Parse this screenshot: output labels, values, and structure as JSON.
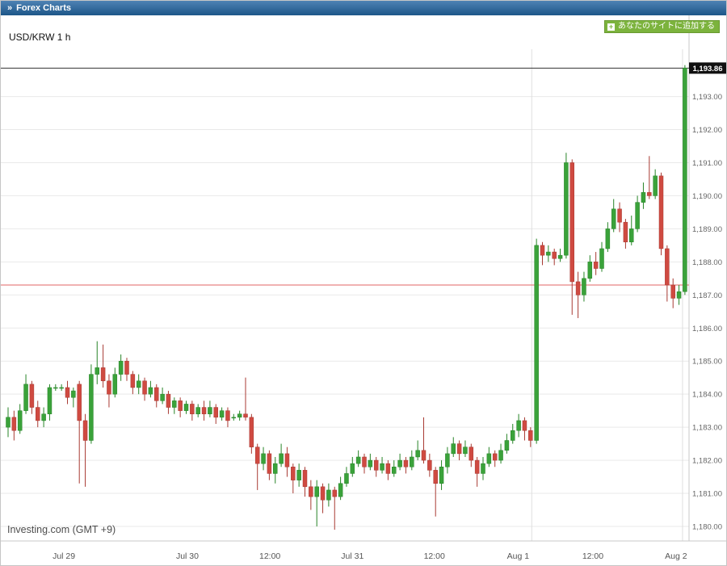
{
  "header": {
    "title": "Forex Charts",
    "chevron": "»"
  },
  "add_button": {
    "plus": "+",
    "label": "あなたのサイトに追加する"
  },
  "chart": {
    "symbol_label": "USD/KRW 1 h",
    "watermark": "Investing.com (GMT +9)"
  },
  "chart_data": {
    "type": "candlestick",
    "title": "USD/KRW 1 h",
    "pair": "USD/KRW",
    "timeframe": "1 h",
    "ylim": [
      1179.56,
      1194.43
    ],
    "price_ticks": [
      1180,
      1181,
      1182,
      1183,
      1184,
      1185,
      1186,
      1187,
      1188,
      1189,
      1190,
      1191,
      1192,
      1193
    ],
    "x_ticks": [
      {
        "label": "Jul 29",
        "i": 9.4
      },
      {
        "label": "Jul 30",
        "i": 30.2
      },
      {
        "label": "12:00",
        "i": 44.1
      },
      {
        "label": "Jul 31",
        "i": 58.0
      },
      {
        "label": "12:00",
        "i": 71.8
      },
      {
        "label": "Aug 1",
        "i": 85.9
      },
      {
        "label": "12:00",
        "i": 98.5
      },
      {
        "label": "Aug 2",
        "i": 112.5
      }
    ],
    "day_separators": [
      88.2,
      113.6
    ],
    "current_price": 1193.86,
    "current_price_label": "1,193.86",
    "reference_price": 1187.3,
    "colors": {
      "up": "#3aa23a",
      "up_stroke": "#278427",
      "down": "#cf4a41",
      "down_stroke": "#a83a33",
      "reference_line": "#e06666",
      "current_line": "#333333",
      "grid": "#e9e9e9",
      "axis": "#c8c8c8"
    },
    "candle_format": [
      "open",
      "high",
      "low",
      "close"
    ],
    "candles": [
      [
        1183.0,
        1183.6,
        1182.7,
        1183.3
      ],
      [
        1183.3,
        1183.5,
        1182.6,
        1182.9
      ],
      [
        1182.9,
        1183.7,
        1182.8,
        1183.5
      ],
      [
        1183.5,
        1184.6,
        1183.4,
        1184.3
      ],
      [
        1184.3,
        1184.4,
        1183.4,
        1183.6
      ],
      [
        1183.6,
        1183.8,
        1183.0,
        1183.2
      ],
      [
        1183.2,
        1183.6,
        1183.0,
        1183.4
      ],
      [
        1183.4,
        1184.3,
        1183.2,
        1184.2
      ],
      [
        1184.2,
        1184.3,
        1184.1,
        1184.2
      ],
      [
        1184.2,
        1184.3,
        1184.1,
        1184.2
      ],
      [
        1184.2,
        1184.4,
        1183.7,
        1183.9
      ],
      [
        1183.9,
        1184.2,
        1183.6,
        1184.1
      ],
      [
        1184.3,
        1184.4,
        1181.3,
        1183.2
      ],
      [
        1183.2,
        1183.4,
        1181.2,
        1182.6
      ],
      [
        1182.6,
        1184.9,
        1182.5,
        1184.6
      ],
      [
        1184.6,
        1185.6,
        1184.3,
        1184.8
      ],
      [
        1184.8,
        1185.5,
        1184.2,
        1184.4
      ],
      [
        1184.4,
        1184.6,
        1183.6,
        1184.0
      ],
      [
        1184.0,
        1184.8,
        1183.9,
        1184.6
      ],
      [
        1184.6,
        1185.2,
        1184.4,
        1185.0
      ],
      [
        1185.0,
        1185.1,
        1184.4,
        1184.6
      ],
      [
        1184.6,
        1184.7,
        1184.0,
        1184.2
      ],
      [
        1184.2,
        1184.6,
        1184.0,
        1184.4
      ],
      [
        1184.4,
        1184.5,
        1183.8,
        1184.0
      ],
      [
        1184.0,
        1184.4,
        1183.9,
        1184.2
      ],
      [
        1184.2,
        1184.3,
        1183.6,
        1183.8
      ],
      [
        1183.8,
        1184.2,
        1183.7,
        1184.0
      ],
      [
        1184.0,
        1184.1,
        1183.4,
        1183.6
      ],
      [
        1183.6,
        1183.9,
        1183.4,
        1183.8
      ],
      [
        1183.8,
        1183.9,
        1183.3,
        1183.5
      ],
      [
        1183.5,
        1183.8,
        1183.4,
        1183.7
      ],
      [
        1183.7,
        1183.8,
        1183.2,
        1183.4
      ],
      [
        1183.4,
        1183.7,
        1183.3,
        1183.6
      ],
      [
        1183.6,
        1183.8,
        1183.2,
        1183.4
      ],
      [
        1183.4,
        1183.8,
        1183.3,
        1183.6
      ],
      [
        1183.6,
        1183.7,
        1183.1,
        1183.3
      ],
      [
        1183.3,
        1183.6,
        1183.2,
        1183.5
      ],
      [
        1183.5,
        1183.6,
        1183.0,
        1183.2
      ],
      [
        1183.3,
        1183.4,
        1183.2,
        1183.3
      ],
      [
        1183.3,
        1183.5,
        1183.2,
        1183.4
      ],
      [
        1183.4,
        1184.5,
        1183.2,
        1183.3
      ],
      [
        1183.3,
        1183.4,
        1182.2,
        1182.4
      ],
      [
        1182.4,
        1182.5,
        1181.1,
        1181.9
      ],
      [
        1181.9,
        1182.4,
        1181.7,
        1182.2
      ],
      [
        1182.2,
        1182.3,
        1181.4,
        1181.6
      ],
      [
        1181.6,
        1182.1,
        1181.3,
        1181.9
      ],
      [
        1181.9,
        1182.5,
        1181.8,
        1182.2
      ],
      [
        1182.2,
        1182.4,
        1181.5,
        1181.8
      ],
      [
        1181.8,
        1181.9,
        1181.0,
        1181.4
      ],
      [
        1181.4,
        1181.9,
        1181.2,
        1181.7
      ],
      [
        1181.7,
        1181.8,
        1180.9,
        1181.2
      ],
      [
        1181.2,
        1181.4,
        1180.5,
        1180.9
      ],
      [
        1180.9,
        1181.4,
        1180.0,
        1181.2
      ],
      [
        1181.2,
        1181.3,
        1180.4,
        1180.8
      ],
      [
        1180.8,
        1181.3,
        1180.6,
        1181.1
      ],
      [
        1181.1,
        1181.2,
        1179.9,
        1180.9
      ],
      [
        1180.9,
        1181.5,
        1180.8,
        1181.3
      ],
      [
        1181.3,
        1181.8,
        1181.2,
        1181.6
      ],
      [
        1181.6,
        1182.1,
        1181.5,
        1181.9
      ],
      [
        1181.9,
        1182.3,
        1181.8,
        1182.1
      ],
      [
        1182.1,
        1182.2,
        1181.6,
        1181.8
      ],
      [
        1181.8,
        1182.2,
        1181.7,
        1182.0
      ],
      [
        1182.0,
        1182.1,
        1181.5,
        1181.7
      ],
      [
        1181.7,
        1182.1,
        1181.6,
        1181.9
      ],
      [
        1181.9,
        1182.0,
        1181.4,
        1181.6
      ],
      [
        1181.6,
        1182.0,
        1181.5,
        1181.8
      ],
      [
        1181.8,
        1182.2,
        1181.7,
        1182.0
      ],
      [
        1182.0,
        1182.1,
        1181.6,
        1181.8
      ],
      [
        1181.8,
        1182.3,
        1181.7,
        1182.1
      ],
      [
        1182.1,
        1182.6,
        1182.0,
        1182.3
      ],
      [
        1182.3,
        1183.3,
        1181.9,
        1182.0
      ],
      [
        1182.0,
        1182.2,
        1181.5,
        1181.7
      ],
      [
        1181.7,
        1181.8,
        1180.3,
        1181.3
      ],
      [
        1181.3,
        1182.0,
        1181.1,
        1181.8
      ],
      [
        1181.8,
        1182.4,
        1181.6,
        1182.2
      ],
      [
        1182.2,
        1182.7,
        1182.1,
        1182.5
      ],
      [
        1182.5,
        1182.6,
        1182.0,
        1182.2
      ],
      [
        1182.2,
        1182.6,
        1182.1,
        1182.4
      ],
      [
        1182.4,
        1182.5,
        1181.8,
        1182.0
      ],
      [
        1182.0,
        1182.1,
        1181.2,
        1181.6
      ],
      [
        1181.6,
        1182.1,
        1181.4,
        1181.9
      ],
      [
        1181.9,
        1182.4,
        1181.8,
        1182.2
      ],
      [
        1182.2,
        1182.3,
        1181.8,
        1182.0
      ],
      [
        1182.0,
        1182.5,
        1181.9,
        1182.3
      ],
      [
        1182.3,
        1182.8,
        1182.2,
        1182.6
      ],
      [
        1182.6,
        1183.1,
        1182.5,
        1182.9
      ],
      [
        1182.9,
        1183.4,
        1182.7,
        1183.2
      ],
      [
        1183.2,
        1183.3,
        1182.6,
        1182.9
      ],
      [
        1182.9,
        1183.0,
        1182.4,
        1182.6
      ],
      [
        1182.6,
        1188.7,
        1182.5,
        1188.5
      ],
      [
        1188.5,
        1188.6,
        1187.9,
        1188.2
      ],
      [
        1188.2,
        1188.5,
        1188.0,
        1188.3
      ],
      [
        1188.3,
        1188.4,
        1187.9,
        1188.1
      ],
      [
        1188.1,
        1188.4,
        1188.0,
        1188.2
      ],
      [
        1188.2,
        1191.3,
        1188.1,
        1191.0
      ],
      [
        1191.0,
        1191.1,
        1186.4,
        1187.4
      ],
      [
        1187.4,
        1187.7,
        1186.3,
        1187.0
      ],
      [
        1187.0,
        1187.7,
        1186.8,
        1187.5
      ],
      [
        1187.5,
        1188.2,
        1187.4,
        1188.0
      ],
      [
        1188.0,
        1188.3,
        1187.6,
        1187.8
      ],
      [
        1187.8,
        1188.6,
        1187.7,
        1188.4
      ],
      [
        1188.4,
        1189.2,
        1188.3,
        1189.0
      ],
      [
        1189.0,
        1189.9,
        1188.9,
        1189.6
      ],
      [
        1189.6,
        1189.8,
        1188.9,
        1189.2
      ],
      [
        1189.2,
        1189.3,
        1188.4,
        1188.6
      ],
      [
        1188.6,
        1189.4,
        1188.5,
        1189.0
      ],
      [
        1189.0,
        1190.0,
        1188.9,
        1189.8
      ],
      [
        1189.8,
        1190.4,
        1189.6,
        1190.1
      ],
      [
        1190.1,
        1191.2,
        1189.9,
        1190.0
      ],
      [
        1190.0,
        1190.8,
        1189.9,
        1190.6
      ],
      [
        1190.6,
        1190.7,
        1188.2,
        1188.4
      ],
      [
        1188.4,
        1188.5,
        1186.8,
        1187.3
      ],
      [
        1187.3,
        1187.5,
        1186.6,
        1186.9
      ],
      [
        1186.9,
        1187.3,
        1186.7,
        1187.1
      ],
      [
        1187.1,
        1193.95,
        1187.0,
        1193.86
      ]
    ]
  }
}
